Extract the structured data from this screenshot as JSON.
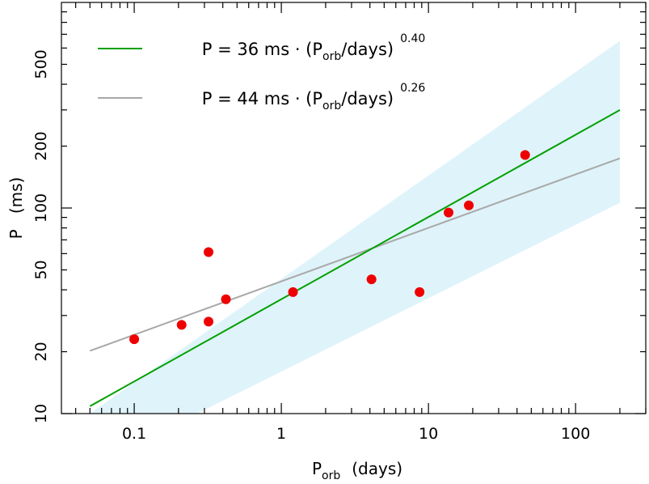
{
  "chart_data": {
    "type": "scatter",
    "xscale": "log",
    "yscale": "log",
    "xlim": [
      0.032,
      300
    ],
    "ylim": [
      10,
      1000
    ],
    "grid": false,
    "legend_placement": "top-left",
    "xlabel": {
      "main": "P",
      "sub": "orb",
      "rest": "(days)"
    },
    "ylabel": "P   (ms)",
    "x_ticks": [
      {
        "value": 0.1,
        "label": "0.1"
      },
      {
        "value": 1,
        "label": "1"
      },
      {
        "value": 10,
        "label": "10"
      },
      {
        "value": 100,
        "label": "100"
      }
    ],
    "y_ticks": [
      {
        "value": 10,
        "label": "10"
      },
      {
        "value": 20,
        "label": "20"
      },
      {
        "value": 50,
        "label": "50"
      },
      {
        "value": 100,
        "label": "100"
      },
      {
        "value": 200,
        "label": "200"
      },
      {
        "value": 500,
        "label": "500"
      }
    ],
    "points": [
      {
        "x": 0.1,
        "y": 23
      },
      {
        "x": 0.21,
        "y": 27
      },
      {
        "x": 0.32,
        "y": 28
      },
      {
        "x": 0.32,
        "y": 61
      },
      {
        "x": 0.42,
        "y": 36
      },
      {
        "x": 1.2,
        "y": 39
      },
      {
        "x": 4.1,
        "y": 45
      },
      {
        "x": 8.7,
        "y": 39
      },
      {
        "x": 13.7,
        "y": 95
      },
      {
        "x": 18.8,
        "y": 103
      },
      {
        "x": 45.4,
        "y": 181
      }
    ],
    "fits": [
      {
        "coef": 36,
        "exp": 0.4,
        "color": "#00a000",
        "x_range": [
          0.05,
          200
        ],
        "label": {
          "pre": "P = 36 ms · (P",
          "sub": "orb",
          "post": "/days)",
          "sup": "0.40"
        }
      },
      {
        "coef": 44,
        "exp": 0.26,
        "color": "#a8a8a8",
        "x_range": [
          0.05,
          200
        ],
        "label": {
          "pre": "P = 44 ms · (P",
          "sub": "orb",
          "post": "/days)",
          "sup": "0.26"
        }
      }
    ],
    "band": {
      "color": "#dff3fa",
      "upper": [
        {
          "x": 0.05,
          "y": 10
        },
        {
          "x": 200,
          "y": 650
        }
      ],
      "lower": [
        {
          "x": 0.05,
          "y": 5.5
        },
        {
          "x": 200,
          "y": 106
        }
      ]
    },
    "colors": {
      "points": "#ee0000",
      "axis": "#000000"
    }
  }
}
